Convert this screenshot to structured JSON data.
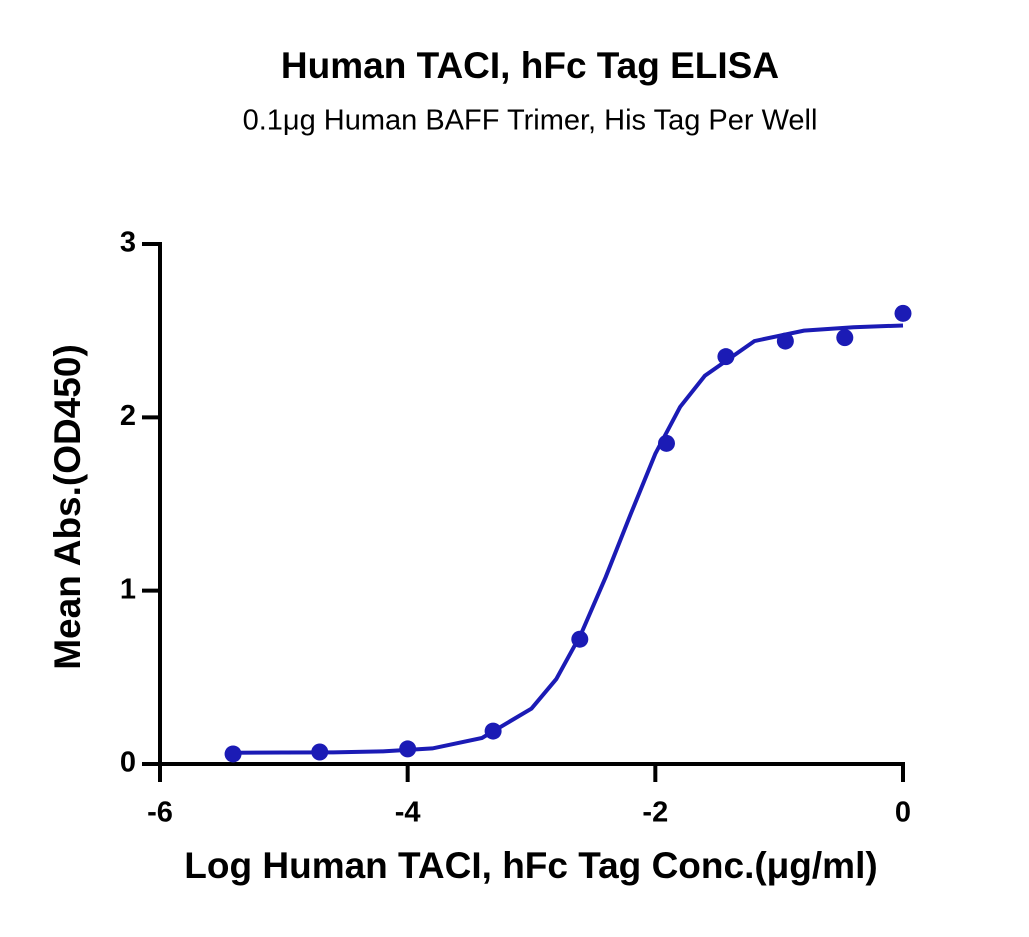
{
  "chart_data": {
    "type": "scatter",
    "title": "Human TACI, hFc Tag ELISA",
    "subtitle": "0.1μg Human BAFF Trimer, His Tag Per Well",
    "x_label": "Log Human TACI, hFc Tag Conc.(μg/ml)",
    "y_label": "Mean Abs.(OD450)",
    "xlim": [
      -6,
      0
    ],
    "xticks": [
      -6,
      -4,
      -2,
      0
    ],
    "ylim": [
      0,
      3
    ],
    "yticks": [
      0,
      1,
      2,
      3
    ],
    "color": "#1b1bb5",
    "x": [
      -5.41,
      -4.71,
      -4.0,
      -3.31,
      -2.61,
      -1.91,
      -1.43,
      -0.95,
      -0.47,
      0
    ],
    "values": [
      0.058,
      0.069,
      0.087,
      0.19,
      0.72,
      1.85,
      2.35,
      2.44,
      2.46,
      2.6
    ],
    "curve": {
      "x": [
        -5.4,
        -5.0,
        -4.6,
        -4.2,
        -3.8,
        -3.4,
        -3.0,
        -2.8,
        -2.6,
        -2.4,
        -2.2,
        -2.0,
        -1.8,
        -1.6,
        -1.2,
        -0.8,
        -0.4,
        0
      ],
      "values": [
        0.065,
        0.066,
        0.067,
        0.073,
        0.09,
        0.15,
        0.32,
        0.49,
        0.75,
        1.08,
        1.44,
        1.79,
        2.06,
        2.24,
        2.44,
        2.5,
        2.52,
        2.53
      ]
    }
  }
}
